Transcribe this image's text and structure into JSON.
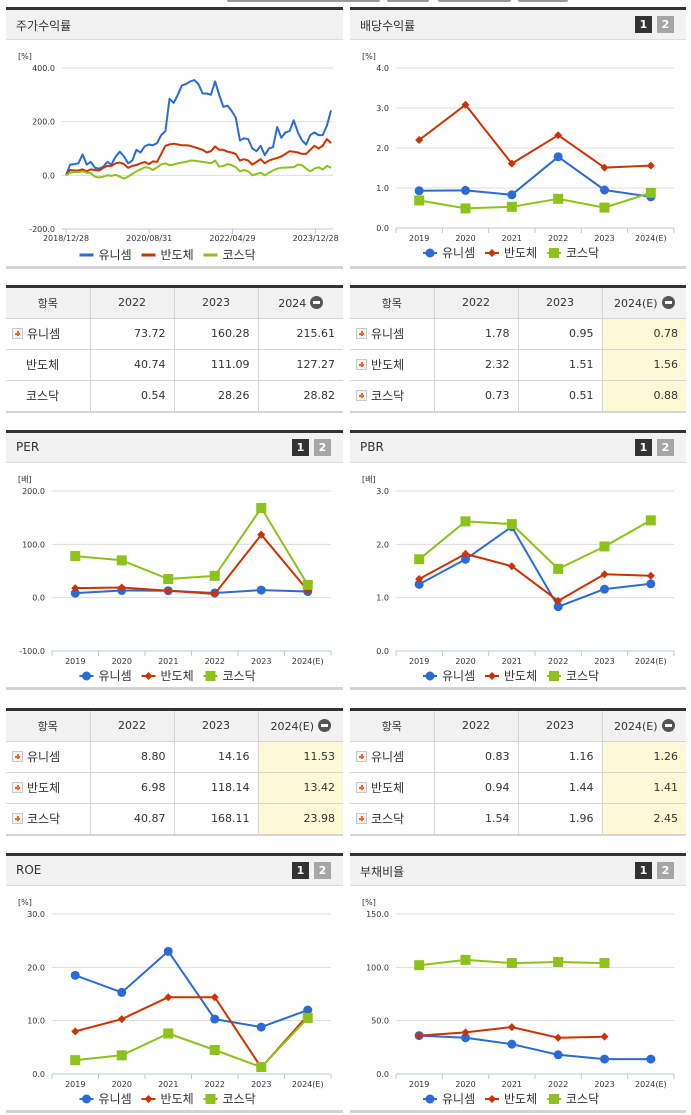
{
  "colors": {
    "unisem": "#2a6bd6",
    "semiconductor": "#cc3300",
    "kosdaq": "#8cc21a",
    "estimate_bg": "#fdf8d6",
    "header_bg": "#f2f2f2"
  },
  "legend": [
    "유니셈",
    "반도체",
    "코스닥"
  ],
  "panels": {
    "stock_return": {
      "title": "주가수익률",
      "unit": "[%]",
      "y_ticks": [
        "400.0",
        "200.0",
        "0.0",
        "-200.0"
      ],
      "x_ticks": [
        "2018/12/28",
        "2020/08/31",
        "2022/04/29",
        "2023/12/28"
      ]
    },
    "dividend": {
      "title": "배당수익률",
      "unit": "[%]",
      "btn1": "1",
      "btn2": "2",
      "y_ticks": [
        "4.0",
        "3.0",
        "2.0",
        "1.0",
        "0.0"
      ],
      "x_ticks": [
        "2019",
        "2020",
        "2021",
        "2022",
        "2023",
        "2024(E)"
      ]
    },
    "per": {
      "title": "PER",
      "unit": "[배]",
      "btn1": "1",
      "btn2": "2",
      "y_ticks": [
        "200.0",
        "100.0",
        "0.0",
        "-100.0"
      ],
      "x_ticks": [
        "2019",
        "2020",
        "2021",
        "2022",
        "2023",
        "2024(E)"
      ]
    },
    "pbr": {
      "title": "PBR",
      "unit": "[배]",
      "btn1": "1",
      "btn2": "2",
      "y_ticks": [
        "3.0",
        "2.0",
        "1.0",
        "0.0"
      ],
      "x_ticks": [
        "2019",
        "2020",
        "2021",
        "2022",
        "2023",
        "2024(E)"
      ]
    },
    "roe": {
      "title": "ROE",
      "unit": "[%]",
      "btn1": "1",
      "btn2": "2",
      "y_ticks": [
        "30.0",
        "20.0",
        "10.0",
        "0.0"
      ],
      "x_ticks": [
        "2019",
        "2020",
        "2021",
        "2022",
        "2023",
        "2024(E)"
      ]
    },
    "debt": {
      "title": "부채비율",
      "unit": "[%]",
      "btn1": "1",
      "btn2": "2",
      "y_ticks": [
        "150.0",
        "100.0",
        "50.0",
        "0.0"
      ],
      "x_ticks": [
        "2019",
        "2020",
        "2021",
        "2022",
        "2023",
        "2024(E)"
      ]
    }
  },
  "tables": {
    "stock_return": {
      "headers": [
        "항목",
        "2022",
        "2023",
        "2024"
      ],
      "rows": [
        {
          "name": "유니셈",
          "values": [
            "73.72",
            "160.28",
            "215.61"
          ]
        },
        {
          "name": "반도체",
          "values": [
            "40.74",
            "111.09",
            "127.27"
          ]
        },
        {
          "name": "코스닥",
          "values": [
            "0.54",
            "28.26",
            "28.82"
          ]
        }
      ]
    },
    "dividend": {
      "headers": [
        "항목",
        "2022",
        "2023",
        "2024(E)"
      ],
      "rows": [
        {
          "name": "유니셈",
          "values": [
            "1.78",
            "0.95",
            "0.78"
          ]
        },
        {
          "name": "반도체",
          "values": [
            "2.32",
            "1.51",
            "1.56"
          ]
        },
        {
          "name": "코스닥",
          "values": [
            "0.73",
            "0.51",
            "0.88"
          ]
        }
      ]
    },
    "per": {
      "headers": [
        "항목",
        "2022",
        "2023",
        "2024(E)"
      ],
      "rows": [
        {
          "name": "유니셈",
          "values": [
            "8.80",
            "14.16",
            "11.53"
          ]
        },
        {
          "name": "반도체",
          "values": [
            "6.98",
            "118.14",
            "13.42"
          ]
        },
        {
          "name": "코스닥",
          "values": [
            "40.87",
            "168.11",
            "23.98"
          ]
        }
      ]
    },
    "pbr": {
      "headers": [
        "항목",
        "2022",
        "2023",
        "2024(E)"
      ],
      "rows": [
        {
          "name": "유니셈",
          "values": [
            "0.83",
            "1.16",
            "1.26"
          ]
        },
        {
          "name": "반도체",
          "values": [
            "0.94",
            "1.44",
            "1.41"
          ]
        },
        {
          "name": "코스닥",
          "values": [
            "1.54",
            "1.96",
            "2.45"
          ]
        }
      ]
    }
  },
  "chart_data": [
    {
      "type": "line",
      "title": "주가수익률",
      "ylabel": "[%]",
      "ylim": [
        -200,
        400
      ],
      "x_ticks": [
        "2018/12/28",
        "2020/08/31",
        "2022/04/29",
        "2023/12/28"
      ],
      "legend_position": "bottom",
      "grid": true,
      "series": [
        {
          "name": "유니셈",
          "values": [
            0,
            40,
            42,
            45,
            78,
            40,
            50,
            28,
            25,
            32,
            50,
            40,
            70,
            88,
            70,
            45,
            55,
            95,
            85,
            108,
            115,
            112,
            120,
            150,
            165,
            285,
            270,
            300,
            335,
            340,
            350,
            355,
            340,
            305,
            305,
            300,
            350,
            300,
            255,
            260,
            240,
            215,
            130,
            138,
            135,
            100,
            90,
            110,
            75,
            100,
            105,
            180,
            140,
            160,
            165,
            205,
            160,
            130,
            115,
            150,
            160,
            150,
            150,
            185,
            242
          ]
        },
        {
          "name": "반도체",
          "values": [
            0,
            20,
            18,
            18,
            22,
            15,
            22,
            20,
            18,
            28,
            35,
            35,
            45,
            48,
            42,
            28,
            35,
            38,
            45,
            50,
            42,
            52,
            50,
            80,
            110,
            115,
            118,
            115,
            112,
            112,
            110,
            105,
            100,
            95,
            85,
            90,
            108,
            95,
            95,
            88,
            85,
            80,
            55,
            60,
            55,
            40,
            50,
            60,
            45,
            55,
            60,
            65,
            70,
            80,
            90,
            88,
            85,
            80,
            80,
            95,
            110,
            100,
            110,
            135,
            120
          ]
        },
        {
          "name": "코스닥",
          "values": [
            0,
            10,
            12,
            12,
            15,
            10,
            8,
            -5,
            -8,
            -5,
            0,
            -2,
            2,
            -5,
            -12,
            -5,
            5,
            15,
            22,
            30,
            28,
            20,
            30,
            40,
            45,
            38,
            40,
            45,
            48,
            50,
            55,
            55,
            52,
            50,
            48,
            45,
            55,
            32,
            35,
            42,
            38,
            30,
            15,
            20,
            15,
            0,
            5,
            10,
            0,
            10,
            18,
            25,
            28,
            28,
            30,
            30,
            40,
            38,
            25,
            15,
            25,
            30,
            22,
            35,
            28
          ]
        }
      ]
    },
    {
      "type": "line",
      "title": "배당수익률",
      "ylabel": "[%]",
      "ylim": [
        0,
        4
      ],
      "categories": [
        "2019",
        "2020",
        "2021",
        "2022",
        "2023",
        "2024(E)"
      ],
      "legend_position": "bottom",
      "grid": true,
      "series": [
        {
          "name": "유니셈",
          "values": [
            0.93,
            0.94,
            0.83,
            1.78,
            0.95,
            0.78
          ]
        },
        {
          "name": "반도체",
          "values": [
            2.2,
            3.08,
            1.61,
            2.32,
            1.51,
            1.56
          ]
        },
        {
          "name": "코스닥",
          "values": [
            0.69,
            0.49,
            0.53,
            0.73,
            0.51,
            0.88
          ]
        }
      ]
    },
    {
      "type": "line",
      "title": "PER",
      "ylabel": "[배]",
      "ylim": [
        -100,
        200
      ],
      "categories": [
        "2019",
        "2020",
        "2021",
        "2022",
        "2023",
        "2024(E)"
      ],
      "legend_position": "bottom",
      "grid": true,
      "series": [
        {
          "name": "유니셈",
          "values": [
            8.5,
            13.5,
            13,
            8.8,
            14.16,
            11.53
          ]
        },
        {
          "name": "반도체",
          "values": [
            18,
            19,
            13,
            6.98,
            118.14,
            13.42
          ]
        },
        {
          "name": "코스닥",
          "values": [
            78,
            70,
            35,
            40.87,
            168.11,
            23.98
          ]
        }
      ]
    },
    {
      "type": "line",
      "title": "PBR",
      "ylabel": "[배]",
      "ylim": [
        0,
        3
      ],
      "categories": [
        "2019",
        "2020",
        "2021",
        "2022",
        "2023",
        "2024(E)"
      ],
      "legend_position": "bottom",
      "grid": true,
      "series": [
        {
          "name": "유니셈",
          "values": [
            1.25,
            1.72,
            2.33,
            0.83,
            1.16,
            1.26
          ]
        },
        {
          "name": "반도체",
          "values": [
            1.35,
            1.82,
            1.59,
            0.94,
            1.44,
            1.41
          ]
        },
        {
          "name": "코스닥",
          "values": [
            1.72,
            2.43,
            2.38,
            1.54,
            1.96,
            2.45
          ]
        }
      ]
    },
    {
      "type": "line",
      "title": "ROE",
      "ylabel": "[%]",
      "ylim": [
        0,
        30
      ],
      "categories": [
        "2019",
        "2020",
        "2021",
        "2022",
        "2023",
        "2024(E)"
      ],
      "legend_position": "bottom",
      "grid": true,
      "series": [
        {
          "name": "유니셈",
          "values": [
            18.5,
            15.3,
            23.0,
            10.3,
            8.8,
            12.0
          ]
        },
        {
          "name": "반도체",
          "values": [
            8.0,
            10.3,
            14.4,
            14.4,
            1.2,
            11.0
          ]
        },
        {
          "name": "코스닥",
          "values": [
            2.6,
            3.5,
            7.6,
            4.5,
            1.3,
            10.5
          ]
        }
      ]
    },
    {
      "type": "line",
      "title": "부채비율",
      "ylabel": "[%]",
      "ylim": [
        0,
        150
      ],
      "categories": [
        "2019",
        "2020",
        "2021",
        "2022",
        "2023",
        "2024(E)"
      ],
      "legend_position": "bottom",
      "grid": true,
      "series": [
        {
          "name": "유니셈",
          "values": [
            36,
            34,
            28,
            18,
            14,
            14
          ]
        },
        {
          "name": "반도체",
          "values": [
            36,
            39,
            44,
            34,
            35,
            null
          ]
        },
        {
          "name": "코스닥",
          "values": [
            102,
            107,
            104,
            105,
            104,
            null
          ]
        }
      ]
    }
  ]
}
